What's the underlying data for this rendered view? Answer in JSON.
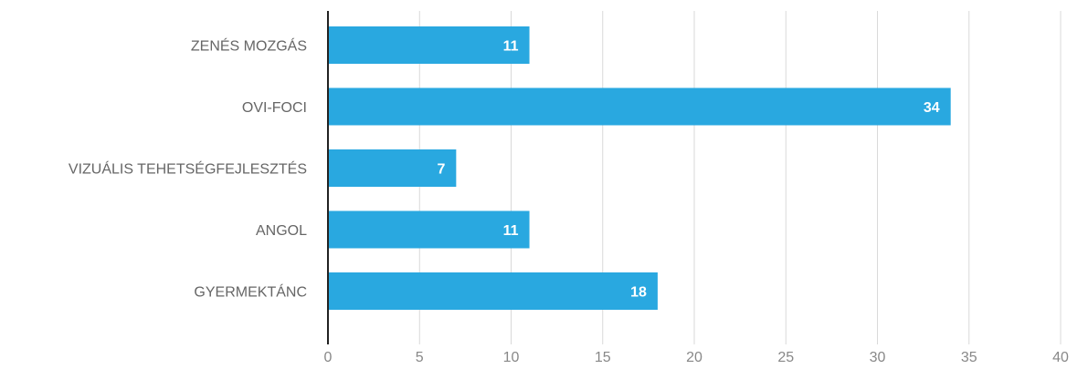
{
  "chart_data": {
    "type": "bar",
    "orientation": "horizontal",
    "categories": [
      "ZENÉS MOZGÁS",
      "OVI-FOCI",
      "VIZUÁLIS TEHETSÉGFEJLESZTÉS",
      "ANGOL",
      "GYERMEKTÁNC"
    ],
    "values": [
      11,
      34,
      7,
      11,
      18
    ],
    "data_labels": [
      "11",
      "34",
      "7",
      "11",
      "18"
    ],
    "xlim": [
      0,
      40
    ],
    "xticks": [
      "0",
      "5",
      "10",
      "15",
      "20",
      "25",
      "30",
      "35",
      "40"
    ],
    "title": "",
    "xlabel": "",
    "ylabel": "",
    "grid": "vertical",
    "legend": "none",
    "bar_color": "#29a8e0"
  }
}
